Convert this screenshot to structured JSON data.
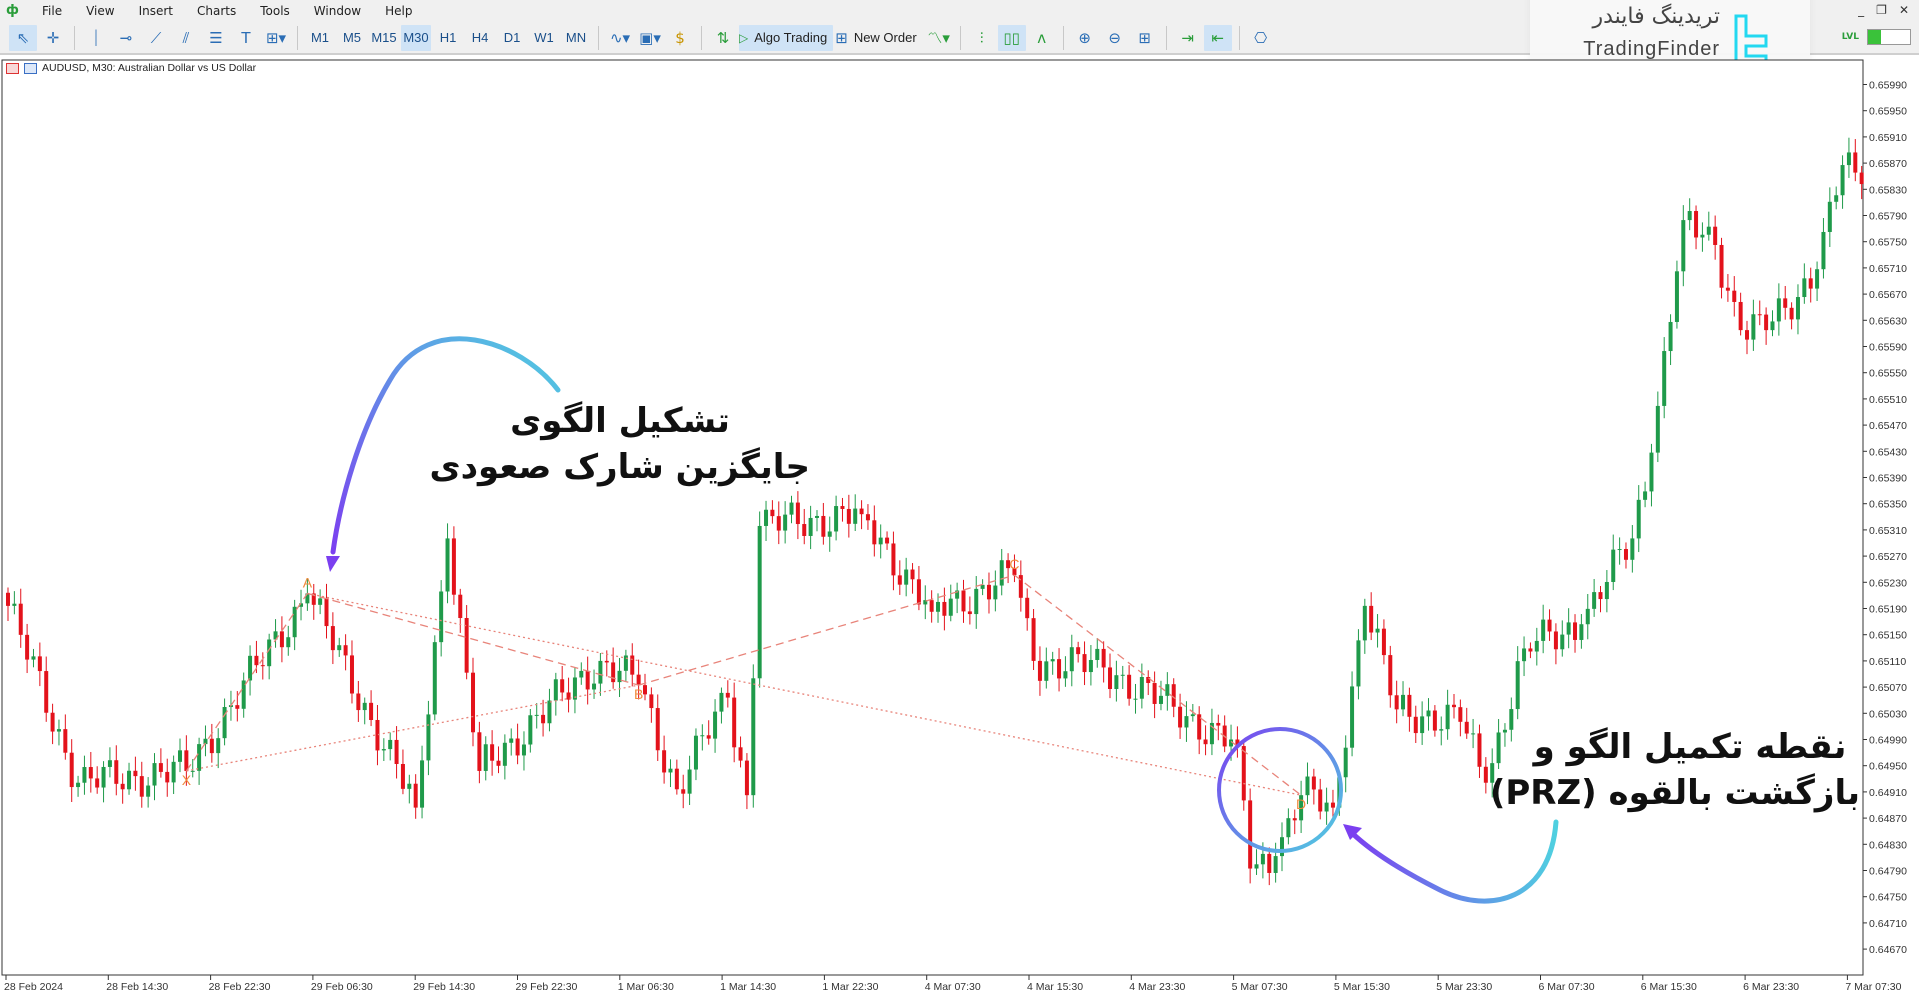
{
  "menu": {
    "items": [
      "File",
      "View",
      "Insert",
      "Charts",
      "Tools",
      "Window",
      "Help"
    ]
  },
  "toolbar": {
    "timeframes": [
      "M1",
      "M5",
      "M15",
      "M30",
      "H1",
      "H4",
      "D1",
      "W1",
      "MN"
    ],
    "active_timeframe": "M30",
    "algo_trading": "Algo Trading",
    "new_order": "New Order"
  },
  "watermark": {
    "fa": "تریدینگ فایندر",
    "en": "TradingFinder"
  },
  "window_controls": {
    "minimize": "_",
    "restore": "❐",
    "close": "✕"
  },
  "level_indicator": {
    "label": "LVL",
    "fill_percent": 30
  },
  "chart_header": "AUDUSD, M30:  Australian Dollar vs US Dollar",
  "annotations": {
    "top": [
      "تشکیل الگوی",
      "جایگزین شارک صعودی"
    ],
    "bottom": [
      "نقطه تکمیل الگو و",
      "بازگشت بالقوه (PRZ)"
    ]
  },
  "colors": {
    "up": "#1f9a4a",
    "down": "#e3121b",
    "pattern": "#e8847a",
    "label": "#f08a3c",
    "arrow_start": "#4fd0e0",
    "arrow_end": "#7b3ff0"
  },
  "chart_data": {
    "type": "candlestick",
    "symbol": "AUDUSD",
    "timeframe": "M30",
    "ylim": [
      0.6465,
      0.6601
    ],
    "y_ticks": [
      "0.65990",
      "0.65950",
      "0.65910",
      "0.65870",
      "0.65830",
      "0.65790",
      "0.65750",
      "0.65710",
      "0.65670",
      "0.65630",
      "0.65590",
      "0.65550",
      "0.65510",
      "0.65470",
      "0.65430",
      "0.65390",
      "0.65350",
      "0.65310",
      "0.65270",
      "0.65230",
      "0.65190",
      "0.65150",
      "0.65110",
      "0.65070",
      "0.65030",
      "0.64990",
      "0.64950",
      "0.64910",
      "0.64870",
      "0.64830",
      "0.64790",
      "0.64750",
      "0.64710",
      "0.64670"
    ],
    "x_ticks": [
      "28 Feb 2024",
      "28 Feb 14:30",
      "28 Feb 22:30",
      "29 Feb 06:30",
      "29 Feb 14:30",
      "29 Feb 22:30",
      "1 Mar 06:30",
      "1 Mar 14:30",
      "1 Mar 22:30",
      "4 Mar 07:30",
      "4 Mar 15:30",
      "4 Mar 23:30",
      "5 Mar 07:30",
      "5 Mar 15:30",
      "5 Mar 23:30",
      "6 Mar 07:30",
      "6 Mar 15:30",
      "6 Mar 23:30",
      "7 Mar 07:30"
    ],
    "price_path": [
      [
        0,
        0.65194
      ],
      [
        11,
        0.64924
      ],
      [
        28,
        0.64942
      ],
      [
        47,
        0.65213
      ],
      [
        64,
        0.64886
      ],
      [
        69,
        0.65297
      ],
      [
        74,
        0.64942
      ],
      [
        93,
        0.6511
      ],
      [
        99,
        0.65073
      ],
      [
        105,
        0.64914
      ],
      [
        113,
        0.65054
      ],
      [
        116,
        0.64905
      ],
      [
        118,
        0.65316
      ],
      [
        134,
        0.65334
      ],
      [
        145,
        0.65185
      ],
      [
        158,
        0.65241
      ],
      [
        161,
        0.6511
      ],
      [
        172,
        0.651
      ],
      [
        193,
        0.6498
      ],
      [
        195,
        0.64793
      ],
      [
        199,
        0.64812
      ],
      [
        203,
        0.64905
      ],
      [
        208,
        0.64886
      ],
      [
        213,
        0.65194
      ],
      [
        218,
        0.65036
      ],
      [
        228,
        0.65017
      ],
      [
        232,
        0.64924
      ],
      [
        238,
        0.65129
      ],
      [
        247,
        0.65166
      ],
      [
        255,
        0.65297
      ],
      [
        258,
        0.65428
      ],
      [
        263,
        0.65783
      ],
      [
        268,
        0.65745
      ],
      [
        272,
        0.65615
      ],
      [
        276,
        0.65615
      ],
      [
        284,
        0.65708
      ],
      [
        288,
        0.65867
      ],
      [
        291,
        0.65838
      ]
    ],
    "pattern": {
      "name": "Bullish Alternate Shark",
      "points": [
        {
          "label": "X",
          "bar": 28,
          "price": 0.64942
        },
        {
          "label": "A",
          "bar": 47,
          "price": 0.65213
        },
        {
          "label": "B",
          "bar": 99,
          "price": 0.65073
        },
        {
          "label": "C",
          "bar": 158,
          "price": 0.65241
        },
        {
          "label": "D",
          "bar": 203,
          "price": 0.64905
        }
      ]
    }
  }
}
